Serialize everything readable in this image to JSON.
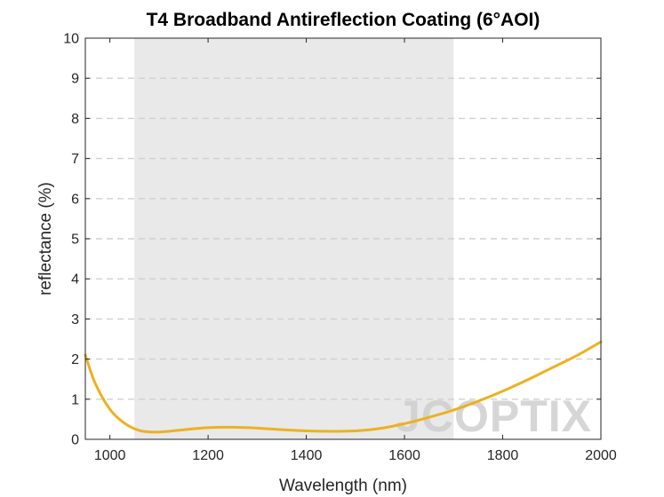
{
  "chart_data": {
    "type": "line",
    "title": "T4 Broadband Antireflection Coating (6°AOI)",
    "xlabel": "Wavelength (nm)",
    "ylabel": "reflectance (%)",
    "xlim": [
      950,
      2000
    ],
    "ylim": [
      0,
      10
    ],
    "xticks": [
      "1000",
      "1200",
      "1400",
      "1600",
      "1800",
      "2000"
    ],
    "yticks": [
      "0",
      "1",
      "2",
      "3",
      "4",
      "5",
      "6",
      "7",
      "8",
      "9",
      "10"
    ],
    "grid": "horizontal dashed",
    "shaded_band": {
      "x": [
        1050,
        1700
      ],
      "color": "#e9e9e9"
    },
    "series": [
      {
        "color": "#EDB120",
        "x": [
          950,
          970,
          1000,
          1030,
          1060,
          1090,
          1120,
          1160,
          1200,
          1260,
          1300,
          1350,
          1400,
          1450,
          1500,
          1550,
          1600,
          1650,
          1700,
          1750,
          1800,
          1850,
          1900,
          1950,
          2000
        ],
        "y": [
          2.1,
          1.4,
          0.75,
          0.4,
          0.22,
          0.18,
          0.2,
          0.25,
          0.29,
          0.3,
          0.28,
          0.24,
          0.21,
          0.2,
          0.21,
          0.27,
          0.39,
          0.55,
          0.73,
          0.95,
          1.2,
          1.48,
          1.78,
          2.08,
          2.43
        ]
      }
    ]
  },
  "watermark": "JCOPTIX"
}
